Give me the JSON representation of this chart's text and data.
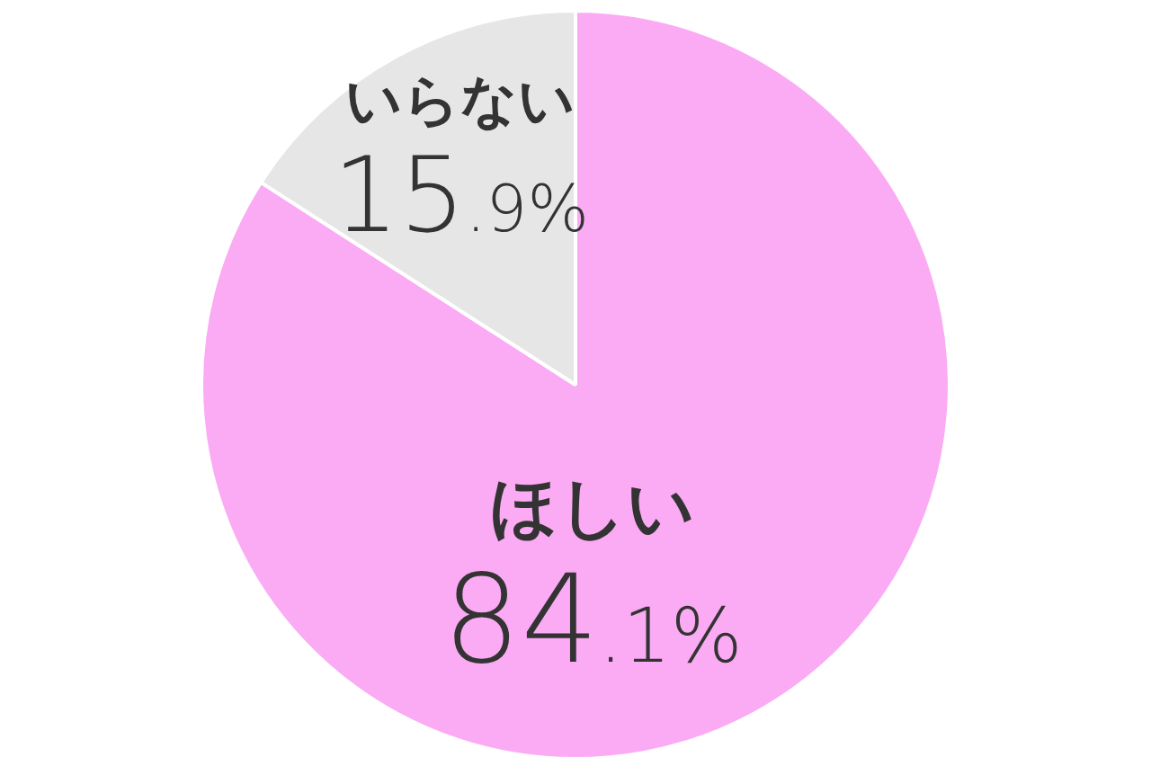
{
  "chart_data": {
    "type": "pie",
    "categories": [
      "ほしい",
      "いらない"
    ],
    "values": [
      84.1,
      15.9
    ],
    "colors": [
      "#fbaaf4",
      "#e6e6e6"
    ],
    "value_labels": [
      "84.1%",
      "15.9%"
    ],
    "legend": false
  }
}
